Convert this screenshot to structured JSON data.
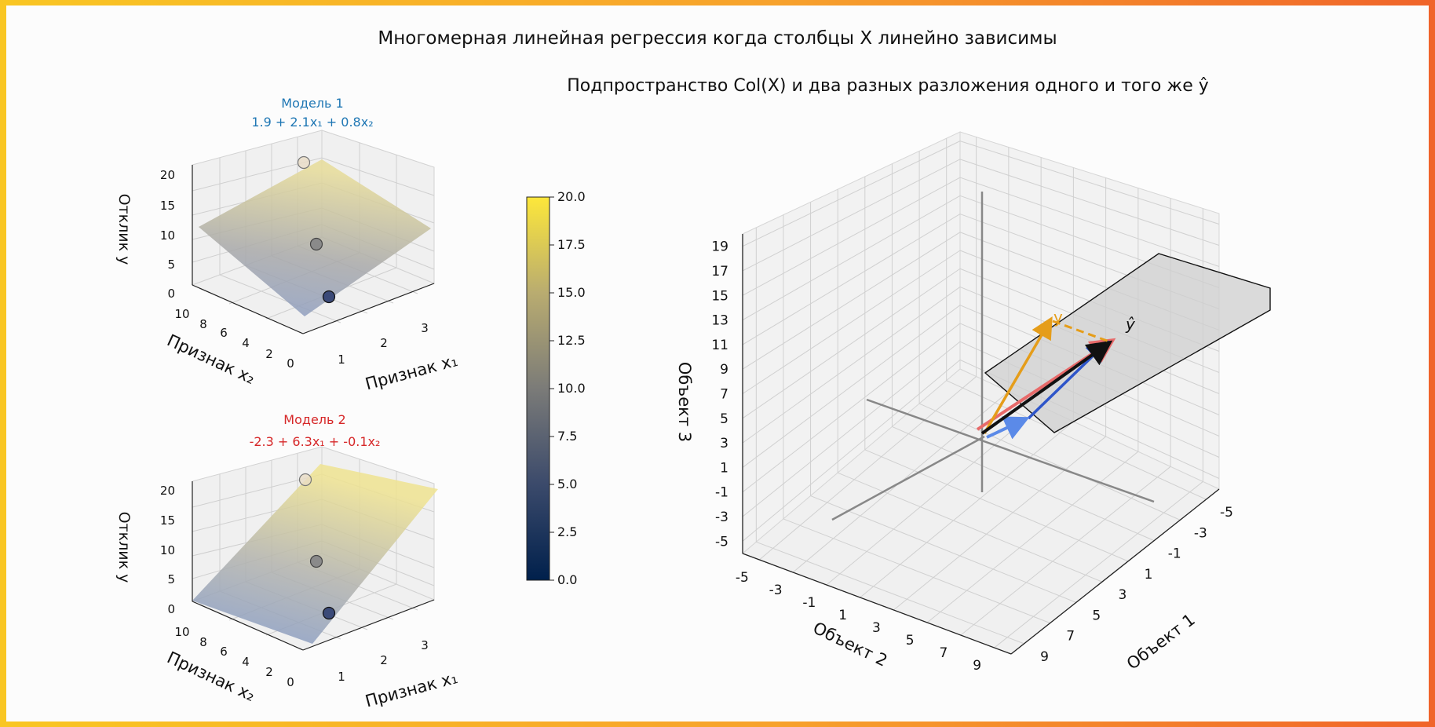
{
  "page": {
    "title": "Многомерная линейная регрессия когда столбцы X линейно зависимы",
    "frame_colors": [
      "#f9c623",
      "#f7a12c",
      "#f0642a"
    ]
  },
  "chart_data": [
    {
      "type": "surface3d",
      "title_line1": "Модель 1",
      "title_line2": "1.9 + 2.1x₁ + 0.8x₂",
      "title_color": "#1f77b4",
      "intercept": 1.9,
      "coef_x1": 2.1,
      "coef_x2": 0.8,
      "xlabel": "Признак x₁",
      "ylabel": "Признак x₂",
      "zlabel": "Отклик y",
      "xlim": [
        0.4,
        3.6
      ],
      "ylim": [
        0,
        10.8
      ],
      "zlim": [
        0,
        20
      ],
      "x_ticks": [
        "1",
        "2",
        "3"
      ],
      "y_ticks": [
        "0",
        "2",
        "4",
        "6",
        "8",
        "10"
      ],
      "z_ticks": [
        "0",
        "5",
        "10",
        "15",
        "20"
      ],
      "points": [
        {
          "x1": 1,
          "x2": 2,
          "y": 3
        },
        {
          "x1": 2,
          "x2": 4,
          "y": 11
        },
        {
          "x1": 3,
          "x2": 6,
          "y": 19
        }
      ]
    },
    {
      "type": "surface3d",
      "title_line1": "Модель 2",
      "title_line2": "-2.3 + 6.3x₁ + -0.1x₂",
      "title_color": "#d62728",
      "intercept": -2.3,
      "coef_x1": 6.3,
      "coef_x2": -0.1,
      "xlabel": "Признак x₁",
      "ylabel": "Признак x₂",
      "zlabel": "Отклик y",
      "xlim": [
        0.4,
        3.6
      ],
      "ylim": [
        0,
        10.8
      ],
      "zlim": [
        0,
        20
      ],
      "x_ticks": [
        "1",
        "2",
        "3"
      ],
      "y_ticks": [
        "0",
        "2",
        "4",
        "6",
        "8",
        "10"
      ],
      "z_ticks": [
        "0",
        "5",
        "10",
        "15",
        "20"
      ],
      "points": [
        {
          "x1": 1,
          "x2": 2,
          "y": 3
        },
        {
          "x1": 2,
          "x2": 4,
          "y": 11
        },
        {
          "x1": 3,
          "x2": 6,
          "y": 19
        }
      ]
    },
    {
      "type": "colorbar",
      "colormap": "cividis",
      "range": [
        0,
        20
      ],
      "ticks": [
        "0.0",
        "2.5",
        "5.0",
        "7.5",
        "10.0",
        "12.5",
        "15.0",
        "17.5",
        "20.0"
      ]
    },
    {
      "type": "vectors3d",
      "title": "Подпространство Col(X) и два разных разложения одного и того же ŷ",
      "xlabel": "Объект 1",
      "ylabel": "Объект 2",
      "zlabel": "Объект 3",
      "axis1_ticks": [
        "-5",
        "-3",
        "-1",
        "1",
        "3",
        "5",
        "7",
        "9"
      ],
      "axis2_ticks": [
        "-5",
        "-3",
        "-1",
        "1",
        "3",
        "5",
        "7",
        "9"
      ],
      "axis3_ticks": [
        "-5",
        "-3",
        "-1",
        "1",
        "3",
        "5",
        "7",
        "9",
        "11",
        "13",
        "15",
        "17",
        "19"
      ],
      "y_label": "y",
      "yhat_label": "ŷ",
      "colors": {
        "y": "#e59d1a",
        "yhat": "#111111",
        "model1_a": "#e86a6a",
        "model1_b": "#2e55c9",
        "model2_a": "#5b8ae8",
        "model2_b": "#e63b3b",
        "residual": "#e59d1a",
        "plane": "#cfcfcf"
      }
    }
  ]
}
